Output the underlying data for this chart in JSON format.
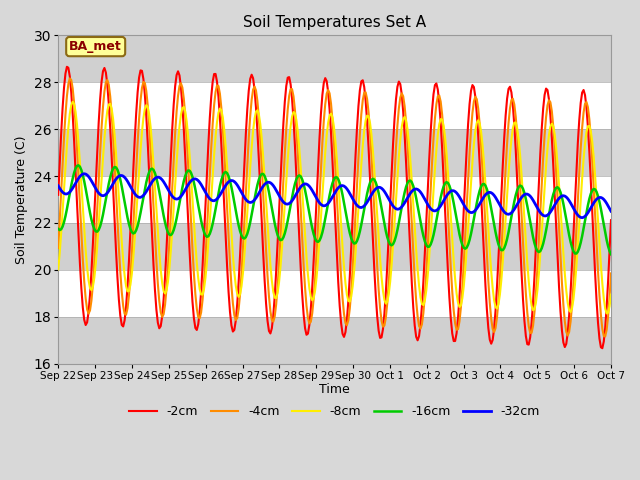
{
  "title": "Soil Temperatures Set A",
  "xlabel": "Time",
  "ylabel": "Soil Temperature (C)",
  "ylim": [
    16,
    30
  ],
  "yticks": [
    16,
    18,
    20,
    22,
    24,
    26,
    28,
    30
  ],
  "background_color": "#d8d8d8",
  "plot_bg_color": "#d8d8d8",
  "label_box_text": "BA_met",
  "label_box_bg": "#ffff99",
  "label_box_border": "#8b6914",
  "legend_entries": [
    "-2cm",
    "-4cm",
    "-8cm",
    "-16cm",
    "-32cm"
  ],
  "line_colors": [
    "#ff0000",
    "#ff8c00",
    "#ffee00",
    "#00cc00",
    "#0000ff"
  ],
  "line_widths": [
    1.5,
    1.5,
    1.5,
    1.8,
    2.0
  ],
  "n_points": 384,
  "depth_params": [
    {
      "mean": 23.2,
      "amp": 5.5,
      "phase": 0.0,
      "period": 24,
      "trend": -0.003
    },
    {
      "mean": 23.2,
      "amp": 5.0,
      "phase": 1.8,
      "period": 24,
      "trend": -0.003
    },
    {
      "mean": 23.2,
      "amp": 4.0,
      "phase": 3.5,
      "period": 24,
      "trend": -0.003
    },
    {
      "mean": 23.1,
      "amp": 1.4,
      "phase": 7.0,
      "period": 24,
      "trend": -0.003
    },
    {
      "mean": 23.7,
      "amp": 0.45,
      "phase": 11.0,
      "period": 24,
      "trend": -0.003
    }
  ],
  "xtick_dates": [
    "Sep 22",
    "Sep 23",
    "Sep 24",
    "Sep 25",
    "Sep 26",
    "Sep 27",
    "Sep 28",
    "Sep 29",
    "Sep 30",
    "Oct 1",
    "Oct 2",
    "Oct 3",
    "Oct 4",
    "Oct 5",
    "Oct 6",
    "Oct 7"
  ]
}
